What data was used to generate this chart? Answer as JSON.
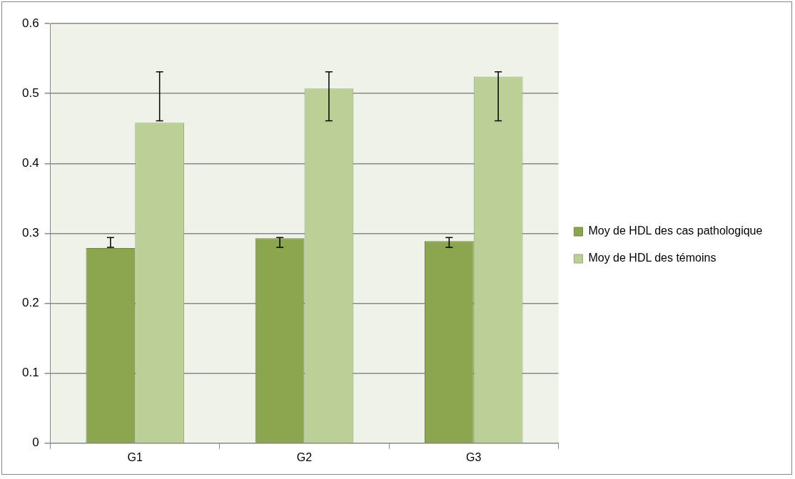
{
  "chart_data": {
    "type": "bar",
    "categories": [
      "G1",
      "G2",
      "G3"
    ],
    "series": [
      {
        "name": "Moy de HDL des cas pathologique",
        "color": "#8ba64e",
        "values": [
          0.279,
          0.293,
          0.289
        ],
        "errors": [
          [
            0.28,
            0.294
          ],
          [
            0.28,
            0.294
          ],
          [
            0.28,
            0.294
          ]
        ]
      },
      {
        "name": "Moy de HDL des témoins",
        "color": "#bbcf96",
        "values": [
          0.458,
          0.507,
          0.524
        ],
        "errors": [
          [
            0.461,
            0.531
          ],
          [
            0.461,
            0.531
          ],
          [
            0.461,
            0.531
          ]
        ]
      }
    ],
    "ylim": [
      0,
      0.6
    ],
    "yticks": [
      0,
      0.1,
      0.2,
      0.3,
      0.4,
      0.5,
      0.6
    ],
    "grid": "y",
    "legend": "right"
  }
}
